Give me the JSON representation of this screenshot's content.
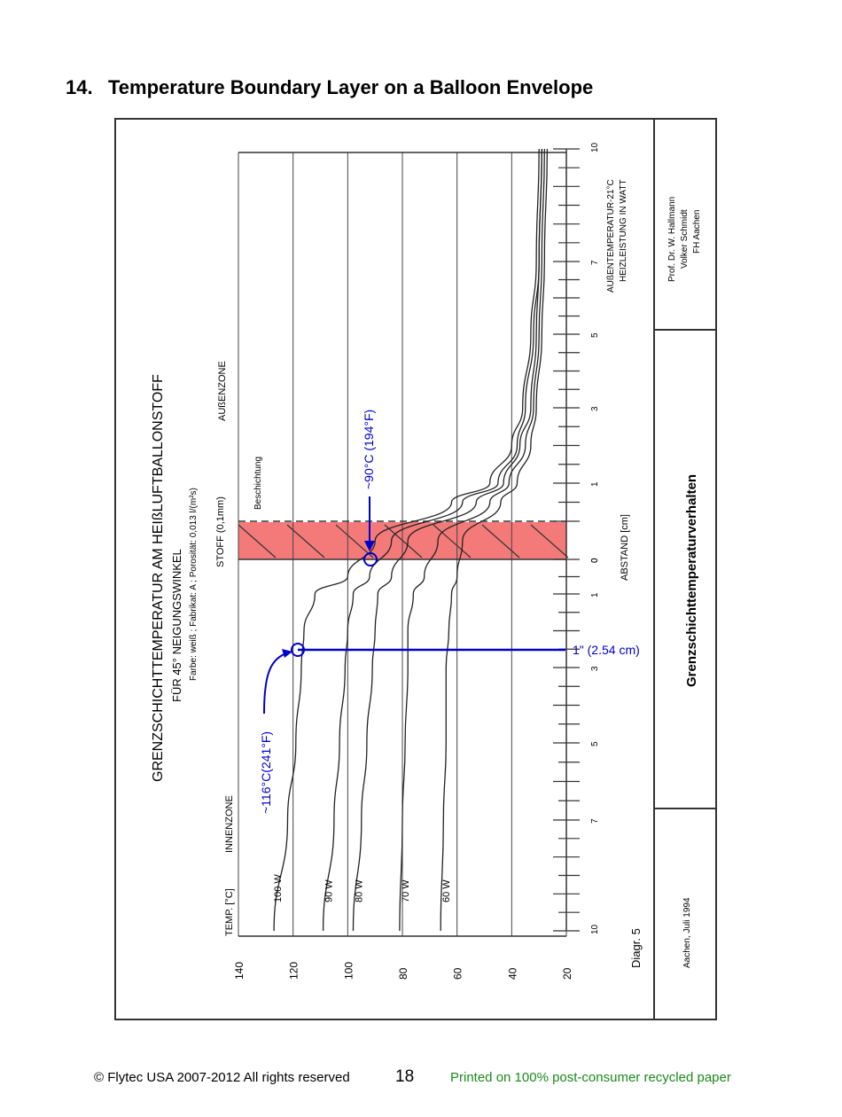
{
  "page": {
    "section_number": "14.",
    "section_title": "Temperature Boundary Layer on a Balloon Envelope",
    "page_number": "18",
    "copyright": "© Flytec USA 2007-2012 All rights reserved",
    "printed_note": "Printed on 100% post-consumer recycled paper",
    "printed_note_color": "#1a8a1a",
    "annotation_color": "#0000cc",
    "fabric_band_color": "#f47a7a"
  },
  "diagram": {
    "title": "GRENZSCHICHTTEMPERATUR AM HEIßLUFTBALLONSTOFF",
    "subtitle": "FÜR 45° NEIGUNGSWINKEL",
    "specs": "Farbe: weiß ; Fabrikat: A ; Porosität: 0,013 l/(m²s)",
    "label_temp_axis": "TEMP. [°C]",
    "label_inner_zone": "INNENZONE",
    "label_fabric": "STOFF (0,1mm)",
    "label_coating": "Beschichtung",
    "label_outer_zone": "AUßENZONE",
    "label_distance": "ABSTAND [cm]",
    "label_outside_temp": "AUßENTEMPERATUR-21°C",
    "label_heating_power": "HEIZLEISTUNG IN WATT",
    "diagram_number": "Diagr. 5",
    "date_place": "Aachen, Juli 1994",
    "sheet_title": "Grenzschichttemperaturverhalten",
    "author_1": "Prof. Dr. W. Hallmann",
    "author_2": "Volker Schmidt",
    "author_3": "FH Aachen"
  },
  "annotations": {
    "point_inner": "~116°C(241°F)",
    "point_surface": "~90°C (194°F)",
    "distance": "1\" (2.54 cm)"
  },
  "chart_data": {
    "type": "line",
    "xlabel": "ABSTAND [cm]",
    "ylabel": "TEMP. [°C]",
    "ylim": [
      20,
      140
    ],
    "yticks": [
      20,
      40,
      60,
      80,
      100,
      120,
      140
    ],
    "x_ticks_inner": [
      "10",
      "7",
      "5",
      "3",
      "1",
      "0"
    ],
    "x_ticks_outer": [
      "0",
      "1",
      "3",
      "5",
      "7",
      "10"
    ],
    "grid": true,
    "x": [
      -10,
      -7,
      -5,
      -3,
      -2,
      -1,
      -0.5,
      0,
      0.5,
      1,
      2,
      3,
      5,
      7,
      10
    ],
    "series": [
      {
        "name": "100 W",
        "values": [
          127,
          122,
          119,
          117,
          116,
          112,
          100,
          90,
          62,
          48,
          40,
          36,
          33,
          31,
          30
        ]
      },
      {
        "name": "90 W",
        "values": [
          109,
          105,
          103,
          101,
          100,
          98,
          92,
          84,
          58,
          45,
          38,
          35,
          32,
          30,
          29
        ]
      },
      {
        "name": "80 W",
        "values": [
          98,
          95,
          93,
          91,
          90,
          89,
          84,
          78,
          53,
          43,
          37,
          33,
          31,
          30,
          29
        ]
      },
      {
        "name": "70 W",
        "values": [
          81,
          80,
          79,
          78,
          78,
          76,
          72,
          67,
          48,
          41,
          35,
          32,
          30,
          29,
          28
        ]
      },
      {
        "name": "60 W",
        "values": [
          66,
          65,
          64,
          64,
          63,
          62,
          60,
          58,
          44,
          38,
          33,
          31,
          29,
          28,
          27
        ]
      }
    ]
  }
}
